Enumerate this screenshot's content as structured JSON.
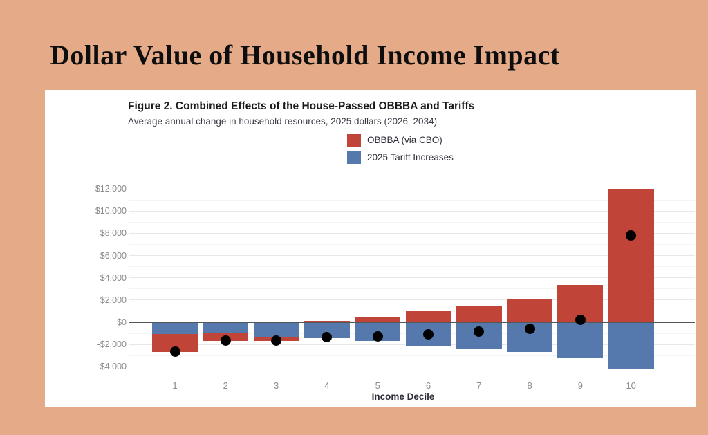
{
  "page": {
    "background_color": "#E5AA88",
    "title": "Dollar Value of Household Income Impact"
  },
  "figure": {
    "title": "Figure 2. Combined Effects of the House-Passed OBBBA and Tariffs",
    "subtitle": "Average annual change in household resources, 2025 dollars (2026–2034)",
    "legend": [
      {
        "label": "OBBBA (via CBO)",
        "color": "#C04437"
      },
      {
        "label": "2025 Tariff Increases",
        "color": "#5579AD"
      }
    ]
  },
  "chart_data": {
    "type": "bar",
    "stacked": true,
    "title": "Figure 2. Combined Effects of the House-Passed OBBBA and Tariffs",
    "subtitle": "Average annual change in household resources, 2025 dollars (2026–2034)",
    "categories": [
      "1",
      "2",
      "3",
      "4",
      "5",
      "6",
      "7",
      "8",
      "9",
      "10"
    ],
    "series": [
      {
        "name": "OBBBA (via CBO)",
        "color": "#C04437",
        "values": [
          -1600,
          -700,
          -350,
          100,
          450,
          1000,
          1500,
          2100,
          3350,
          12000
        ]
      },
      {
        "name": "2025 Tariff Increases",
        "color": "#5579AD",
        "values": [
          -1050,
          -950,
          -1300,
          -1450,
          -1700,
          -2100,
          -2350,
          -2700,
          -3150,
          -4200
        ]
      }
    ],
    "net_points": {
      "name": "Combined net effect",
      "color": "#000000",
      "values": [
        -2650,
        -1650,
        -1650,
        -1350,
        -1250,
        -1100,
        -850,
        -600,
        200,
        7800
      ]
    },
    "xlabel": "Income Decile",
    "ylabel": "",
    "ylim": [
      -4000,
      12000
    ],
    "ytick_step": 2000,
    "ytick_labels": [
      "-$4,000",
      "-$2,000",
      "$0",
      "$2,000",
      "$4,000",
      "$6,000",
      "$8,000",
      "$10,000",
      "$12,000"
    ],
    "grid": true,
    "zero_line": true,
    "legend_position": "top-center",
    "colors": {
      "grid_major": "#e8e8e8",
      "grid_minor": "#f3f3f3",
      "zero_line": "#55565a",
      "tick_label": "#8b8b8b"
    }
  }
}
